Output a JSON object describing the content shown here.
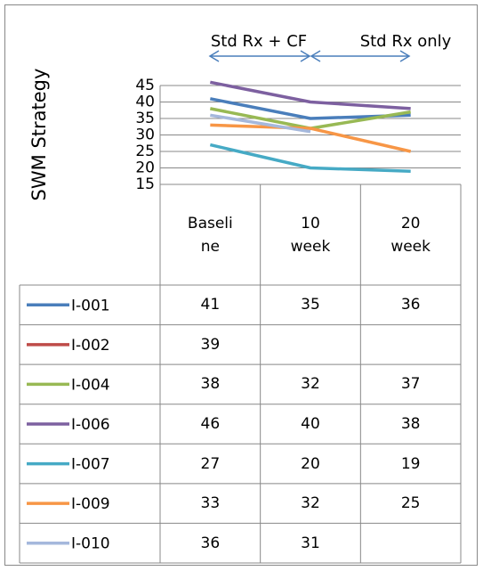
{
  "chart_data": {
    "type": "line",
    "y_label": "SWM Strategy",
    "annotations": [
      "Std Rx + CF",
      "Std Rx only"
    ],
    "categories": [
      "Baseline",
      "10 week",
      "20 week"
    ],
    "series": [
      {
        "name": "I-001",
        "color": "#4a7ebb",
        "values": [
          41,
          35,
          36
        ]
      },
      {
        "name": "I-002",
        "color": "#be4b48",
        "values": [
          39,
          null,
          null
        ]
      },
      {
        "name": "I-004",
        "color": "#98b954",
        "values": [
          38,
          32,
          37
        ]
      },
      {
        "name": "I-006",
        "color": "#7d60a0",
        "values": [
          46,
          40,
          38
        ]
      },
      {
        "name": "I-007",
        "color": "#46aac5",
        "values": [
          27,
          20,
          19
        ]
      },
      {
        "name": "I-009",
        "color": "#f79646",
        "values": [
          33,
          32,
          25
        ]
      },
      {
        "name": "I-010",
        "color": "#a5b8dc",
        "values": [
          36,
          31,
          null
        ]
      }
    ],
    "ylim": [
      15,
      45
    ],
    "yticks": [
      15,
      20,
      25,
      30,
      35,
      40,
      45
    ],
    "grid": true,
    "data_table": true
  }
}
